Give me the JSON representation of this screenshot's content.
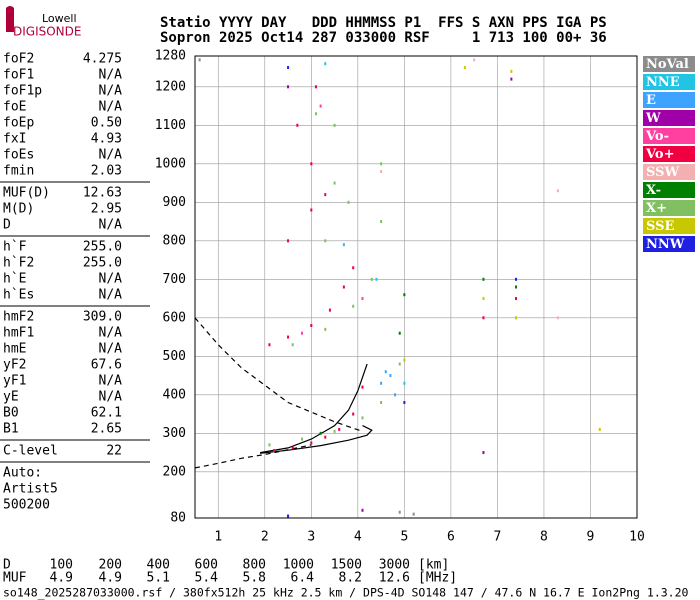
{
  "logo": {
    "line1": "Lowell",
    "line2": "DIGISONDE"
  },
  "header": {
    "line1": "Statio YYYY DAY   DDD HHMMSS P1  FFS S AXN PPS IGA PS",
    "line2": "Sopron 2025 Oct14 287 033000 RSF     1 713 100 00+ 36"
  },
  "params": [
    [
      [
        "foF2",
        "4.275"
      ],
      [
        "foF1",
        "N/A"
      ],
      [
        "foF1p",
        "N/A"
      ],
      [
        "foE",
        "N/A"
      ],
      [
        "foEp",
        "0.50"
      ],
      [
        "fxI",
        "4.93"
      ],
      [
        "foEs",
        "N/A"
      ],
      [
        "fmin",
        "2.03"
      ]
    ],
    [
      [
        "MUF(D)",
        "12.63"
      ],
      [
        "M(D)",
        "2.95"
      ],
      [
        "D",
        "N/A"
      ]
    ],
    [
      [
        "h`F",
        "255.0"
      ],
      [
        "h`F2",
        "255.0"
      ],
      [
        "h`E",
        "N/A"
      ],
      [
        "h`Es",
        "N/A"
      ]
    ],
    [
      [
        "hmF2",
        "309.0"
      ],
      [
        "hmF1",
        "N/A"
      ],
      [
        "hmE",
        "N/A"
      ],
      [
        "yF2",
        "67.6"
      ],
      [
        "yF1",
        "N/A"
      ],
      [
        "yE",
        "N/A"
      ],
      [
        "B0",
        "62.1"
      ],
      [
        "B1",
        "2.65"
      ]
    ],
    [
      [
        "C-level",
        "22"
      ]
    ]
  ],
  "station_info": [
    "Auto:",
    "Artist5",
    "500200"
  ],
  "muf_table": {
    "d_label": "D",
    "d_values": [
      "100",
      "200",
      "400",
      "600",
      "800",
      "1000",
      "1500",
      "3000"
    ],
    "d_unit": "[km]",
    "muf_label": "MUF",
    "muf_values": [
      "4.9",
      "4.9",
      "5.1",
      "5.4",
      "5.8",
      "6.4",
      "8.2",
      "12.6"
    ],
    "muf_unit": "[MHz]"
  },
  "footer": "so148_2025287033000.rsf / 380fx512h 25 kHz 2.5 km / DPS-4D SO148 147 / 47.6 N 16.7 E Ion2Png 1.3.20",
  "chart_data": {
    "type": "scatter",
    "xlim": [
      0.5,
      10
    ],
    "ylim": [
      80,
      1280
    ],
    "xticks": [
      1,
      2,
      3,
      4,
      5,
      6,
      7,
      8,
      9,
      10
    ],
    "yticks": [
      80,
      200,
      300,
      400,
      500,
      600,
      700,
      800,
      900,
      1000,
      1100,
      1200,
      1280
    ],
    "grid": true,
    "series": [
      {
        "name": "NoVal",
        "color": "#8c8c8c",
        "x": [
          2.5,
          4.9,
          5.2,
          0.6
        ],
        "values": [
          85,
          95,
          90,
          1270
        ]
      },
      {
        "name": "NNE",
        "color": "#22c4e4",
        "x": [
          3.3,
          4.4,
          3.7,
          5.0
        ],
        "values": [
          1260,
          700,
          790,
          430
        ]
      },
      {
        "name": "E",
        "color": "#3ca4ff",
        "x": [
          4.5,
          4.6,
          4.8,
          4.7
        ],
        "values": [
          430,
          460,
          400,
          450
        ]
      },
      {
        "name": "W",
        "color": "#a000a8",
        "x": [
          2.5,
          7.3,
          6.7,
          4.1
        ],
        "values": [
          1200,
          1220,
          250,
          100
        ]
      },
      {
        "name": "Vo-",
        "color": "#ff40a0",
        "x": [
          3.2,
          2.8,
          4.1
        ],
        "values": [
          1150,
          560,
          650
        ]
      },
      {
        "name": "Vo+",
        "color": "#f00040",
        "x": [
          2.2,
          2.6,
          3.0,
          3.3,
          3.6,
          3.9,
          4.1,
          2.1,
          2.5,
          3.0,
          3.4,
          3.7,
          3.9,
          2.5,
          3.0,
          3.3,
          3.0,
          2.7,
          3.1,
          6.7,
          7.4
        ],
        "values": [
          255,
          262,
          275,
          290,
          310,
          350,
          420,
          530,
          550,
          580,
          620,
          680,
          730,
          800,
          880,
          920,
          1000,
          1100,
          1200,
          600,
          650
        ]
      },
      {
        "name": "SSW",
        "color": "#f4b0b0",
        "x": [
          8.3,
          8.3,
          6.5,
          4.5
        ],
        "values": [
          930,
          600,
          1270,
          980
        ]
      },
      {
        "name": "X-",
        "color": "#008000",
        "x": [
          4.9,
          5.0,
          6.7,
          7.4,
          3.2
        ],
        "values": [
          560,
          660,
          700,
          680,
          300
        ]
      },
      {
        "name": "X+",
        "color": "#80c060",
        "x": [
          2.1,
          2.8,
          3.5,
          4.1,
          4.5,
          4.9,
          2.6,
          3.3,
          3.9,
          4.3,
          4.5,
          3.3,
          3.8,
          3.5,
          4.5,
          3.5,
          3.1
        ],
        "values": [
          270,
          285,
          305,
          340,
          380,
          480,
          530,
          570,
          630,
          700,
          850,
          800,
          900,
          950,
          1000,
          1100,
          1130
        ]
      },
      {
        "name": "SSE",
        "color": "#c8c800",
        "x": [
          6.3,
          7.3,
          7.4,
          6.7,
          9.2,
          5.0
        ],
        "values": [
          1250,
          1240,
          600,
          650,
          310,
          490
        ]
      },
      {
        "name": "NNW",
        "color": "#2020e0",
        "x": [
          2.5,
          7.4,
          5.0,
          2.5
        ],
        "values": [
          1250,
          700,
          380,
          85
        ]
      }
    ],
    "lines": [
      {
        "style": "solid",
        "x": [
          1.9,
          2.5,
          3.0,
          3.5,
          3.8,
          4.0,
          4.2
        ],
        "values": [
          250,
          262,
          285,
          320,
          360,
          410,
          480
        ]
      },
      {
        "style": "solid",
        "x": [
          1.9,
          2.5,
          3.2,
          3.8,
          4.2,
          4.3,
          4.1
        ],
        "values": [
          248,
          256,
          268,
          282,
          295,
          308,
          320
        ]
      },
      {
        "style": "dashed",
        "x": [
          0.5,
          1.0,
          1.5,
          2.5,
          3.5,
          4.1
        ],
        "values": [
          600,
          530,
          470,
          380,
          330,
          305
        ]
      },
      {
        "style": "dashed",
        "x": [
          0.5,
          1.0,
          1.5,
          2.0,
          3.0
        ],
        "values": [
          210,
          222,
          235,
          245,
          270
        ]
      }
    ]
  }
}
